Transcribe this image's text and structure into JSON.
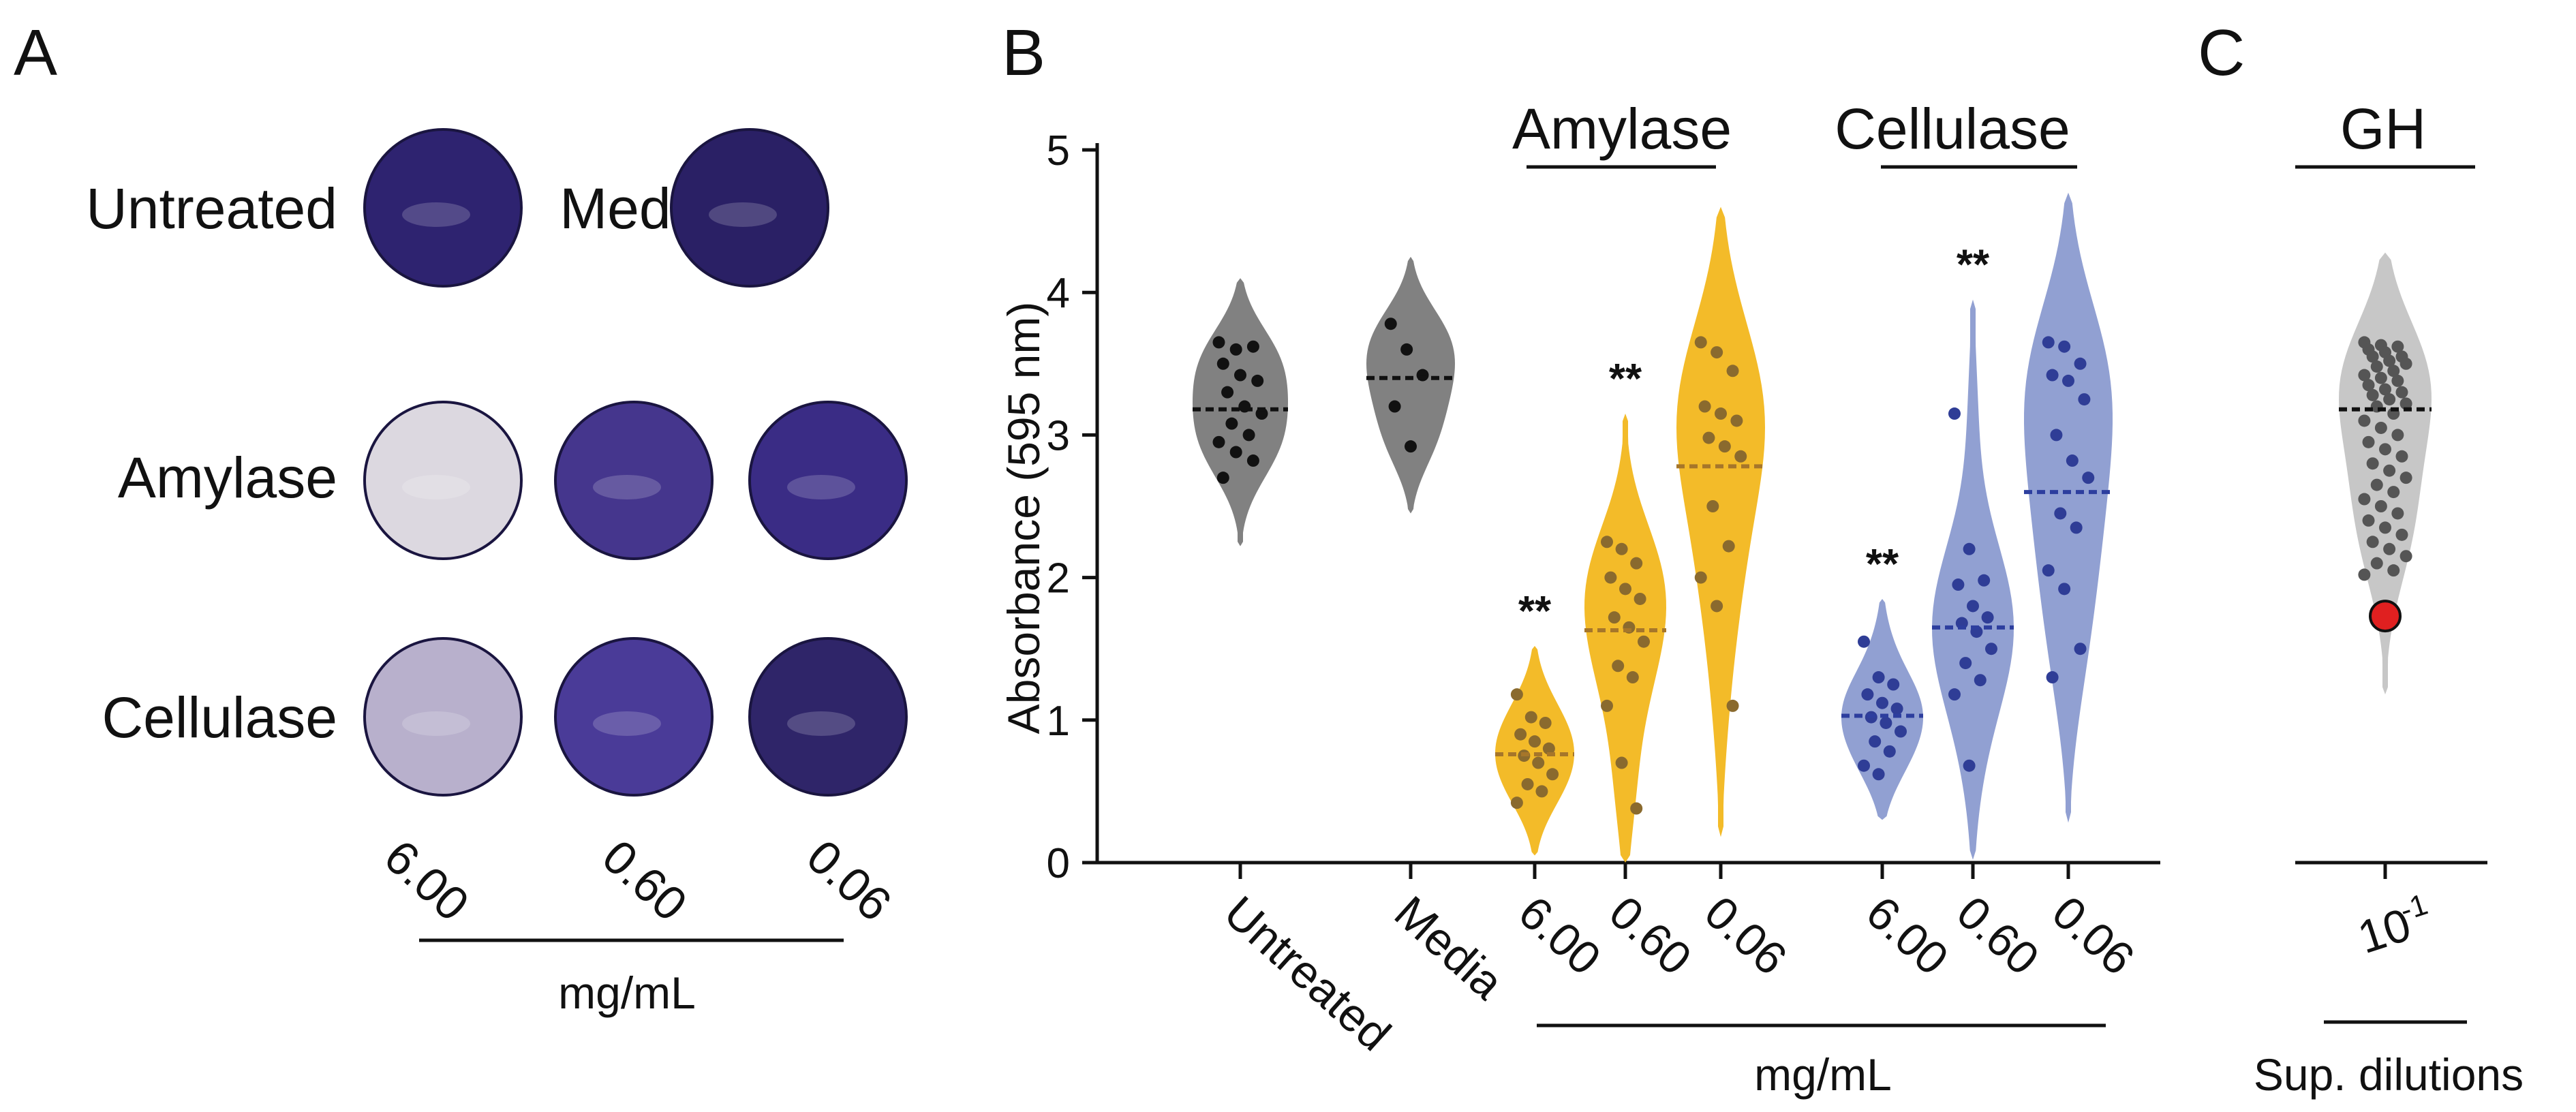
{
  "figure": {
    "panel_a": {
      "letter": "A",
      "row_labels": [
        "Untreated",
        "Media",
        "Amylase",
        "Cellulase"
      ],
      "concentrations": [
        "6.00",
        "0.60",
        "0.06"
      ],
      "unit": "mg/mL",
      "wells": [
        {
          "name": "well-untreated",
          "color": "#2e2370"
        },
        {
          "name": "well-media",
          "color": "#2a2065"
        },
        {
          "name": "well-amylase-6",
          "color": "#dcd8e0"
        },
        {
          "name": "well-amylase-060",
          "color": "#45368d"
        },
        {
          "name": "well-amylase-006",
          "color": "#3a2c85"
        },
        {
          "name": "well-cellulase-6",
          "color": "#b8b0cc"
        },
        {
          "name": "well-cellulase-060",
          "color": "#4a3b98"
        },
        {
          "name": "well-cellulase-006",
          "color": "#2f2569"
        }
      ]
    },
    "panel_b": {
      "letter": "B",
      "group_titles": {
        "amylase": "Amylase",
        "cellulase": "Cellulase"
      },
      "unit": "mg/mL",
      "significance": "**"
    },
    "panel_c": {
      "letter": "C",
      "group_title": "GH",
      "x_tick": "10",
      "x_tick_exp": "-1",
      "xlabel": "Sup. dilutions"
    },
    "colors": {
      "gray": "#7a7a7a",
      "amylase": "#f2b71e",
      "amylase_median": "#a6762a",
      "cellulase": "#8b9bd0",
      "cellulase_median": "#2d3e9e",
      "gh": "#c4c4c4",
      "highlight": "#e02020"
    }
  },
  "chart_data": [
    {
      "type": "violin",
      "panel": "B",
      "ylabel": "Absorbance (595 nm)",
      "ylim": [
        0,
        5
      ],
      "yticks": [
        0,
        1,
        2,
        3,
        4,
        5
      ],
      "categories": [
        "Untreated",
        "Media",
        "6.00",
        "0.60",
        "0.06",
        "6.00",
        "0.60",
        "0.06"
      ],
      "groups": [
        "",
        "",
        "Amylase",
        "Amylase",
        "Amylase",
        "Cellulase",
        "Cellulase",
        "Cellulase"
      ],
      "series": [
        {
          "name": "Untreated",
          "median": 3.18,
          "range": [
            2.22,
            4.1
          ],
          "points": [
            3.65,
            3.6,
            3.62,
            3.5,
            3.42,
            3.38,
            3.3,
            3.2,
            3.15,
            3.08,
            3.0,
            2.95,
            2.88,
            2.82,
            2.7
          ]
        },
        {
          "name": "Media",
          "median": 3.4,
          "range": [
            2.45,
            4.25
          ],
          "points": [
            3.78,
            3.6,
            3.42,
            3.2,
            2.92
          ]
        },
        {
          "name": "Amylase 6.00",
          "median": 0.76,
          "range": [
            0.05,
            1.52
          ],
          "significance": "**",
          "points": [
            1.18,
            1.02,
            0.98,
            0.9,
            0.85,
            0.8,
            0.75,
            0.7,
            0.62,
            0.55,
            0.5,
            0.42
          ]
        },
        {
          "name": "Amylase 0.60",
          "median": 1.63,
          "range": [
            0.0,
            3.15
          ],
          "significance": "**",
          "points": [
            2.25,
            2.2,
            2.1,
            2.0,
            1.92,
            1.85,
            1.72,
            1.65,
            1.55,
            1.38,
            1.3,
            1.1,
            0.7,
            0.38
          ]
        },
        {
          "name": "Amylase 0.06",
          "median": 2.78,
          "range": [
            0.18,
            4.6
          ],
          "points": [
            3.65,
            3.58,
            3.45,
            3.2,
            3.15,
            3.1,
            2.98,
            2.92,
            2.85,
            2.5,
            2.22,
            2.0,
            1.8,
            1.1
          ]
        },
        {
          "name": "Cellulase 6.00",
          "median": 1.03,
          "range": [
            0.3,
            1.85
          ],
          "significance": "**",
          "points": [
            1.55,
            1.3,
            1.25,
            1.18,
            1.12,
            1.08,
            1.02,
            0.98,
            0.92,
            0.85,
            0.78,
            0.68,
            0.62
          ]
        },
        {
          "name": "Cellulase 0.60",
          "median": 1.65,
          "range": [
            0.02,
            3.95
          ],
          "significance": "**",
          "points": [
            3.15,
            2.2,
            1.98,
            1.95,
            1.8,
            1.72,
            1.68,
            1.62,
            1.5,
            1.4,
            1.28,
            1.18,
            0.68
          ]
        },
        {
          "name": "Cellulase 0.06",
          "median": 2.6,
          "range": [
            0.28,
            4.7
          ],
          "points": [
            3.65,
            3.62,
            3.5,
            3.42,
            3.38,
            3.25,
            3.0,
            2.82,
            2.7,
            2.45,
            2.35,
            2.05,
            1.92,
            1.5,
            1.3
          ]
        }
      ]
    },
    {
      "type": "violin",
      "panel": "C",
      "ylim": [
        0,
        5
      ],
      "categories": [
        "10-1"
      ],
      "series": [
        {
          "name": "GH 10-1",
          "median": 3.18,
          "range": [
            1.18,
            4.28
          ],
          "highlight_point": 1.73,
          "points": [
            3.65,
            3.63,
            3.62,
            3.6,
            3.58,
            3.55,
            3.55,
            3.52,
            3.5,
            3.48,
            3.45,
            3.42,
            3.4,
            3.38,
            3.35,
            3.32,
            3.3,
            3.28,
            3.25,
            3.22,
            3.2,
            3.15,
            3.1,
            3.05,
            3.0,
            2.95,
            2.9,
            2.85,
            2.8,
            2.75,
            2.7,
            2.65,
            2.6,
            2.55,
            2.5,
            2.45,
            2.4,
            2.35,
            2.3,
            2.25,
            2.2,
            2.15,
            2.1,
            2.05,
            2.02
          ]
        }
      ]
    }
  ]
}
